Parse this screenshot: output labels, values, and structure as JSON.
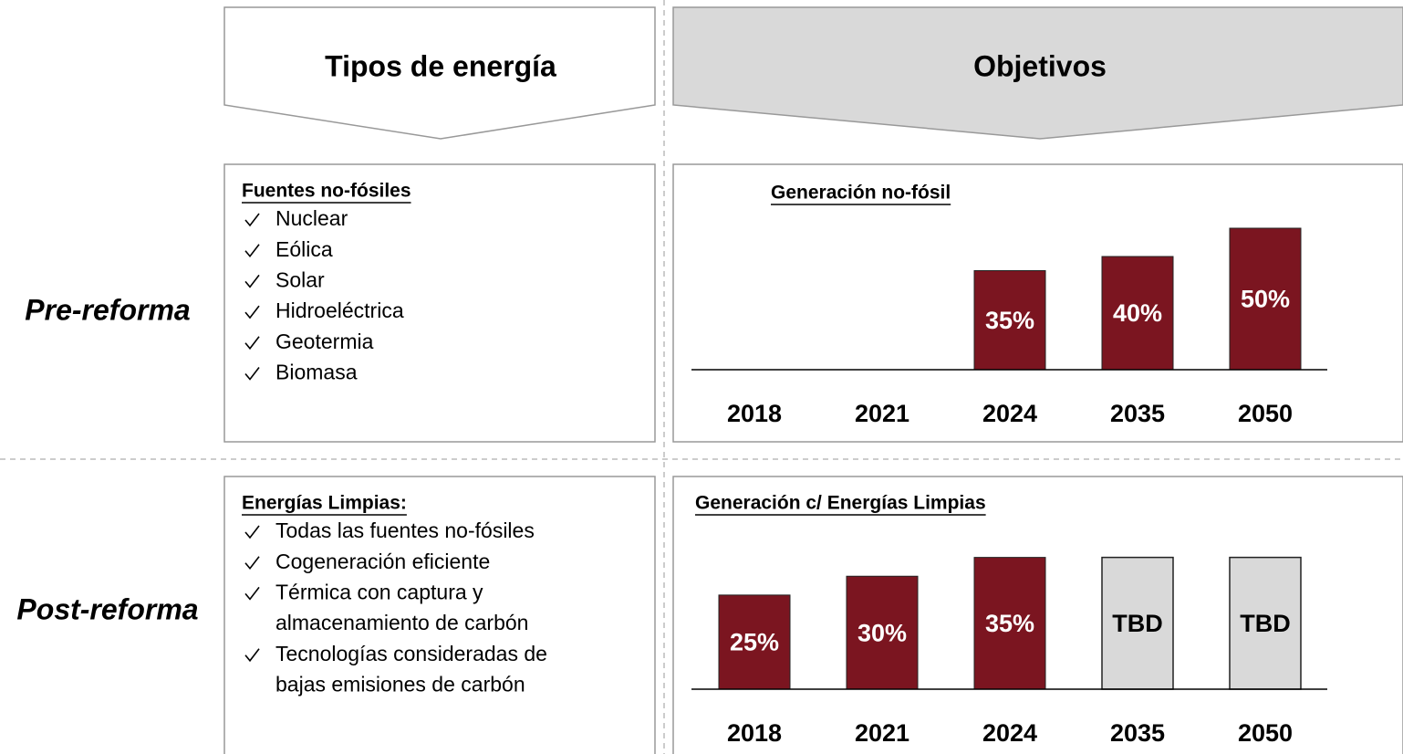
{
  "header": {
    "left": "Tipos de energía",
    "right": "Objetivos"
  },
  "rows": [
    {
      "label": "Pre-reforma",
      "list_title": "Fuentes no-fósiles",
      "items": [
        [
          "Nuclear"
        ],
        [
          "Eólica"
        ],
        [
          "Solar"
        ],
        [
          "Hidroeléctrica"
        ],
        [
          "Geotermia"
        ],
        [
          "Biomasa"
        ]
      ]
    },
    {
      "label": "Post-reforma",
      "list_title": "Energías Limpias:",
      "items": [
        [
          "Todas las fuentes no-fósiles"
        ],
        [
          "Cogeneración eficiente"
        ],
        [
          "Térmica con captura y",
          "almacenamiento de carbón"
        ],
        [
          "Tecnologías consideradas de",
          "bajas emisiones de carbón"
        ]
      ]
    }
  ],
  "chart_data": [
    {
      "type": "bar",
      "title": "Generación no-fósil",
      "categories": [
        "2018",
        "2021",
        "2024",
        "2035",
        "2050"
      ],
      "values": [
        null,
        null,
        35,
        40,
        50
      ],
      "value_labels": [
        null,
        null,
        "35%",
        "40%",
        "50%"
      ],
      "color": "#7b1520",
      "ylim": [
        0,
        55
      ]
    },
    {
      "type": "bar",
      "title": "Generación c/ Energías Limpias",
      "categories": [
        "2018",
        "2021",
        "2024",
        "2035",
        "2050"
      ],
      "values": [
        25,
        30,
        35,
        null,
        null
      ],
      "value_labels": [
        "25%",
        "30%",
        "35%",
        "TBD",
        "TBD"
      ],
      "color": "#7b1520",
      "pending_color": "#d9d9d9",
      "ylim": [
        0,
        40
      ]
    }
  ]
}
